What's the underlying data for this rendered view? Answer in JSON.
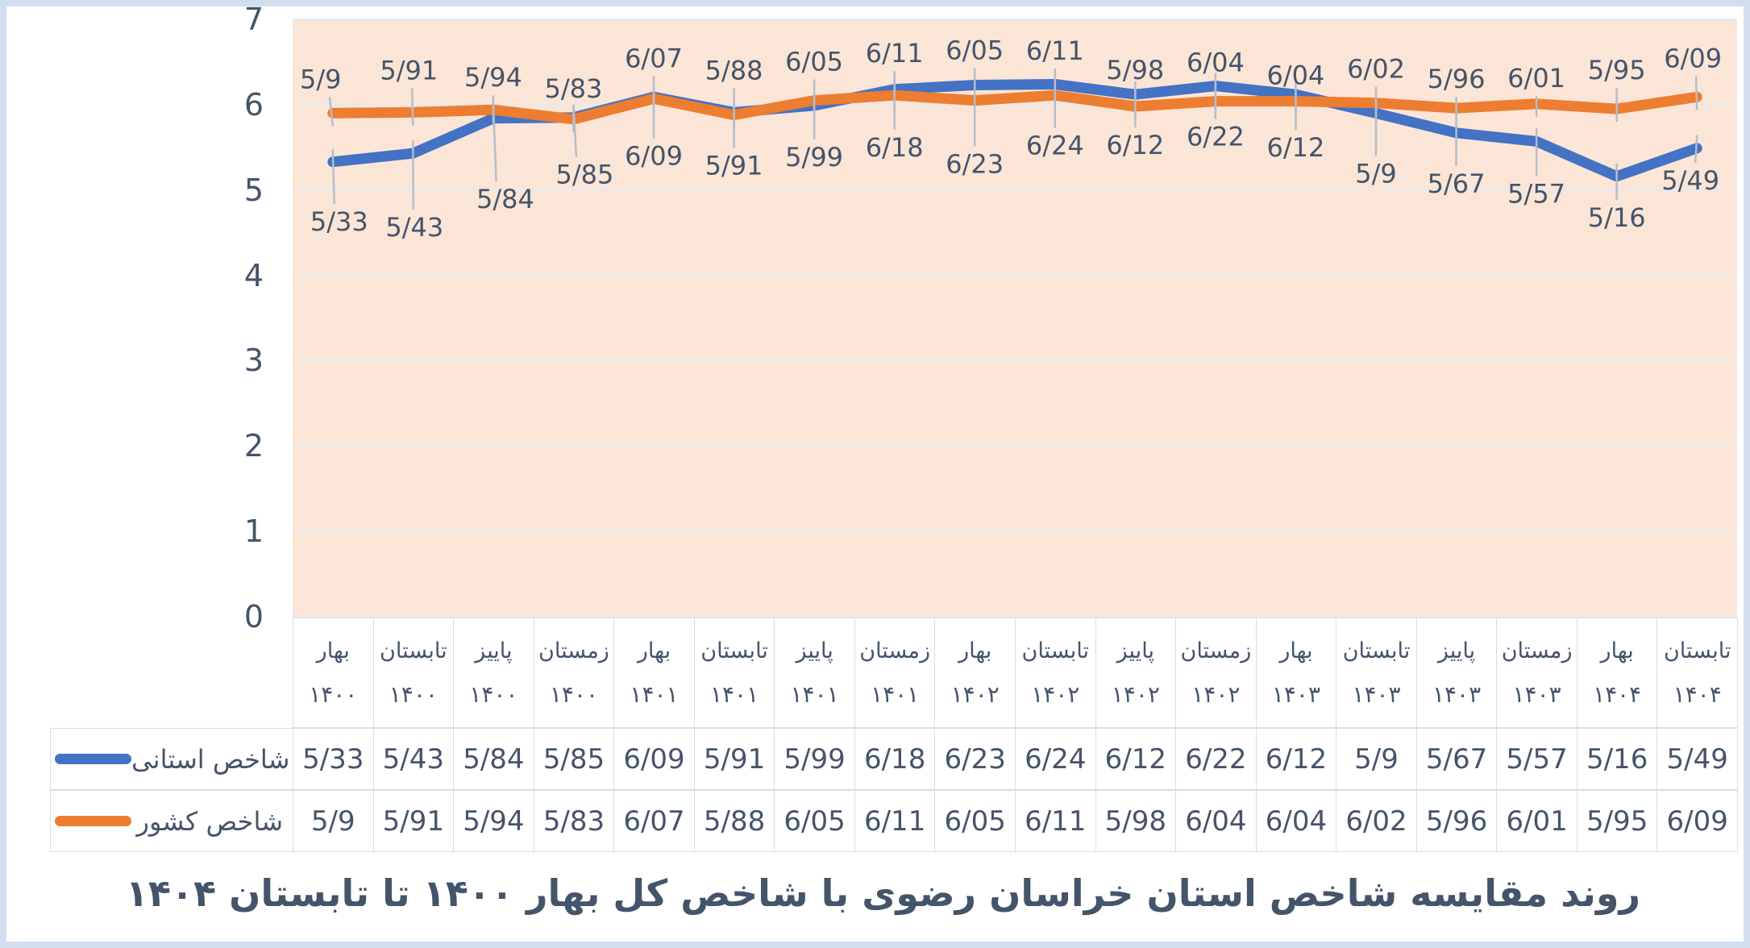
{
  "title": "روند مقایسه شاخص استان خراسان رضوی با شاخص کل بهار ۱۴۰۰ تا تابستان ۱۴۰۴",
  "colors": {
    "provincial_line": "#4472C4",
    "national_line": "#ED7D31",
    "plot_background": "#FBE5D6",
    "text": "#44546A",
    "gridline": "#E5EAF2",
    "leader_line": "#B4BDCB",
    "cell_border": "#D9DDE6",
    "frame_border": "#D2DEF0"
  },
  "y_axis": {
    "min": 0,
    "max": 7,
    "tick_labels": [
      "7",
      "6",
      "5",
      "4",
      "3",
      "2",
      "1",
      "0"
    ]
  },
  "chart_data": {
    "type": "line",
    "title": "روند مقایسه شاخص استان خراسان رضوی با شاخص کل بهار ۱۴۰۰ تا تابستان ۱۴۰۴",
    "ylim": [
      0,
      7
    ],
    "y_ticks": [
      0,
      1,
      2,
      3,
      4,
      5,
      6,
      7
    ],
    "grid": true,
    "plot_bg": "#FBE5D6",
    "legend_position": "table-left",
    "decimal_separator": "/",
    "categories": [
      "بهار ۱۴۰۰",
      "تابستان ۱۴۰۰",
      "پاییز ۱۴۰۰",
      "زمستان ۱۴۰۰",
      "بهار ۱۴۰۱",
      "تابستان ۱۴۰۱",
      "پاییز ۱۴۰۱",
      "زمستان ۱۴۰۱",
      "بهار ۱۴۰۲",
      "تابستان ۱۴۰۲",
      "پاییز ۱۴۰۲",
      "زمستان ۱۴۰۲",
      "بهار ۱۴۰۳",
      "تابستان ۱۴۰۳",
      "پاییز ۱۴۰۳",
      "زمستان ۱۴۰۳",
      "بهار ۱۴۰۴",
      "تابستان ۱۴۰۴"
    ],
    "categories_parts": [
      {
        "season": "بهار",
        "year": "۱۴۰۰"
      },
      {
        "season": "تابستان",
        "year": "۱۴۰۰"
      },
      {
        "season": "پاییز",
        "year": "۱۴۰۰"
      },
      {
        "season": "زمستان",
        "year": "۱۴۰۰"
      },
      {
        "season": "بهار",
        "year": "۱۴۰۱"
      },
      {
        "season": "تابستان",
        "year": "۱۴۰۱"
      },
      {
        "season": "پاییز",
        "year": "۱۴۰۱"
      },
      {
        "season": "زمستان",
        "year": "۱۴۰۱"
      },
      {
        "season": "بهار",
        "year": "۱۴۰۲"
      },
      {
        "season": "تابستان",
        "year": "۱۴۰۲"
      },
      {
        "season": "پاییز",
        "year": "۱۴۰۲"
      },
      {
        "season": "زمستان",
        "year": "۱۴۰۲"
      },
      {
        "season": "بهار",
        "year": "۱۴۰۳"
      },
      {
        "season": "تابستان",
        "year": "۱۴۰۳"
      },
      {
        "season": "پاییز",
        "year": "۱۴۰۳"
      },
      {
        "season": "زمستان",
        "year": "۱۴۰۳"
      },
      {
        "season": "بهار",
        "year": "۱۴۰۴"
      },
      {
        "season": "تابستان",
        "year": "۱۴۰۴"
      }
    ],
    "series": [
      {
        "name": "شاخص استانی",
        "key": "provincial",
        "color": "#4472C4",
        "values": [
          5.33,
          5.43,
          5.84,
          5.85,
          6.09,
          5.91,
          5.99,
          6.18,
          6.23,
          6.24,
          6.12,
          6.22,
          6.12,
          5.9,
          5.67,
          5.57,
          5.16,
          5.49
        ],
        "labels": [
          "5/33",
          "5/43",
          "5/84",
          "5/85",
          "6/09",
          "5/91",
          "5/99",
          "6/18",
          "6/23",
          "6/24",
          "6/12",
          "6/22",
          "6/12",
          "5/9",
          "5/67",
          "5/57",
          "5/16",
          "5/49"
        ]
      },
      {
        "name": "شاخص کشور",
        "key": "national",
        "color": "#ED7D31",
        "values": [
          5.9,
          5.91,
          5.94,
          5.83,
          6.07,
          5.88,
          6.05,
          6.11,
          6.05,
          6.11,
          5.98,
          6.04,
          6.04,
          6.02,
          5.96,
          6.01,
          5.95,
          6.09
        ],
        "labels": [
          "5/9",
          "5/91",
          "5/94",
          "5/83",
          "6/07",
          "5/88",
          "6/05",
          "6/11",
          "6/05",
          "6/11",
          "5/98",
          "6/04",
          "6/04",
          "6/02",
          "5/96",
          "6/01",
          "5/95",
          "6/09"
        ]
      }
    ]
  }
}
